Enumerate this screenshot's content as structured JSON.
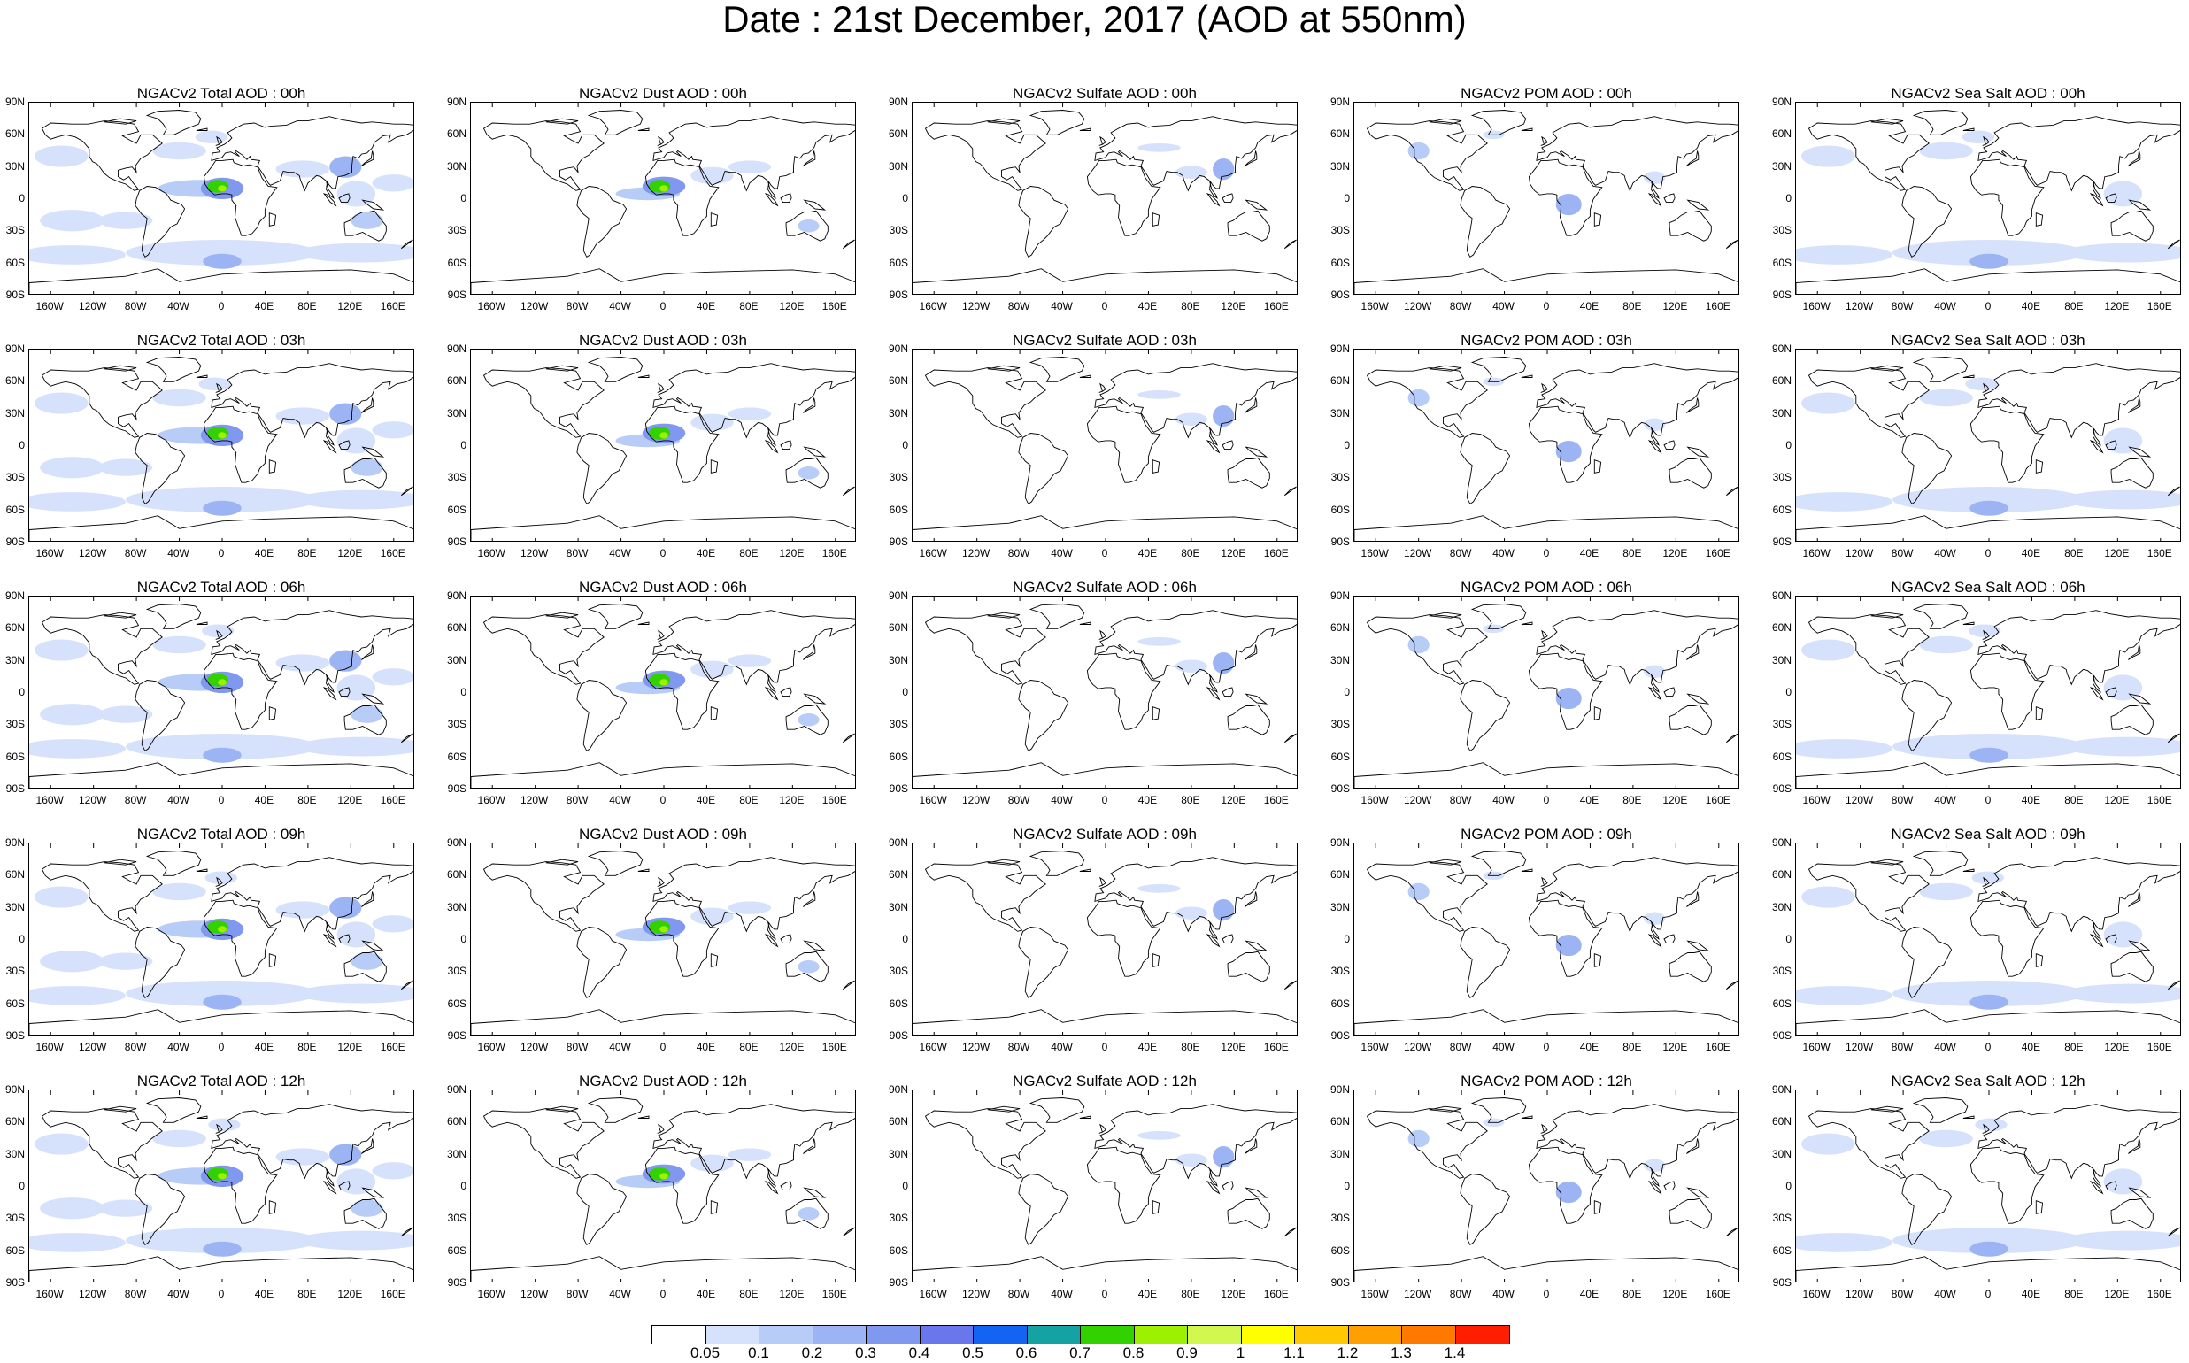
{
  "title": "Date : 21st December, 2017 (AOD at 550nm)",
  "lat_ticks": [
    "90N",
    "60N",
    "30N",
    "0",
    "30S",
    "60S",
    "90S"
  ],
  "lon_ticks": [
    "160W",
    "120W",
    "80W",
    "40W",
    "0",
    "40E",
    "80E",
    "120E",
    "160E"
  ],
  "panels": [
    {
      "title": "NGACv2 Total AOD : 00h",
      "species": "total"
    },
    {
      "title": "NGACv2 Dust AOD : 00h",
      "species": "dust"
    },
    {
      "title": "NGACv2 Sulfate AOD : 00h",
      "species": "sulfate"
    },
    {
      "title": "NGACv2 POM AOD : 00h",
      "species": "pom"
    },
    {
      "title": "NGACv2 Sea Salt AOD : 00h",
      "species": "seasalt"
    },
    {
      "title": "NGACv2 Total AOD : 03h",
      "species": "total"
    },
    {
      "title": "NGACv2 Dust AOD : 03h",
      "species": "dust"
    },
    {
      "title": "NGACv2 Sulfate AOD : 03h",
      "species": "sulfate"
    },
    {
      "title": "NGACv2 POM AOD : 03h",
      "species": "pom"
    },
    {
      "title": "NGACv2 Sea Salt AOD : 03h",
      "species": "seasalt"
    },
    {
      "title": "NGACv2 Total AOD : 06h",
      "species": "total"
    },
    {
      "title": "NGACv2 Dust AOD : 06h",
      "species": "dust"
    },
    {
      "title": "NGACv2 Sulfate AOD : 06h",
      "species": "sulfate"
    },
    {
      "title": "NGACv2 POM AOD : 06h",
      "species": "pom"
    },
    {
      "title": "NGACv2 Sea Salt AOD : 06h",
      "species": "seasalt"
    },
    {
      "title": "NGACv2 Total AOD : 09h",
      "species": "total"
    },
    {
      "title": "NGACv2 Dust AOD : 09h",
      "species": "dust"
    },
    {
      "title": "NGACv2 Sulfate AOD : 09h",
      "species": "sulfate"
    },
    {
      "title": "NGACv2 POM AOD : 09h",
      "species": "pom"
    },
    {
      "title": "NGACv2 Sea Salt  AOD : 09h",
      "species": "seasalt"
    },
    {
      "title": "NGACv2 Total AOD : 12h",
      "species": "total"
    },
    {
      "title": "NGACv2 Dust AOD : 12h",
      "species": "dust"
    },
    {
      "title": "NGACv2 Sulfate AOD : 12h",
      "species": "sulfate"
    },
    {
      "title": "NGACv2 POM  AOD : 12h",
      "species": "pom"
    },
    {
      "title": "NGACv2 Sea Salt AOD : 12h",
      "species": "seasalt"
    }
  ],
  "colorbar": {
    "labels": [
      "0.05",
      "0.1",
      "0.2",
      "0.3",
      "0.4",
      "0.5",
      "0.6",
      "0.7",
      "0.8",
      "0.9",
      "1",
      "1.1",
      "1.2",
      "1.3",
      "1.4"
    ],
    "colors": [
      "#ffffff",
      "#d6e2fb",
      "#b8ccf8",
      "#9cb4f4",
      "#8098f0",
      "#6a76ec",
      "#1464f4",
      "#15a2a2",
      "#32d200",
      "#9cf000",
      "#d2f850",
      "#ffff00",
      "#ffc800",
      "#ffa000",
      "#ff7800",
      "#ff1e00"
    ]
  }
}
